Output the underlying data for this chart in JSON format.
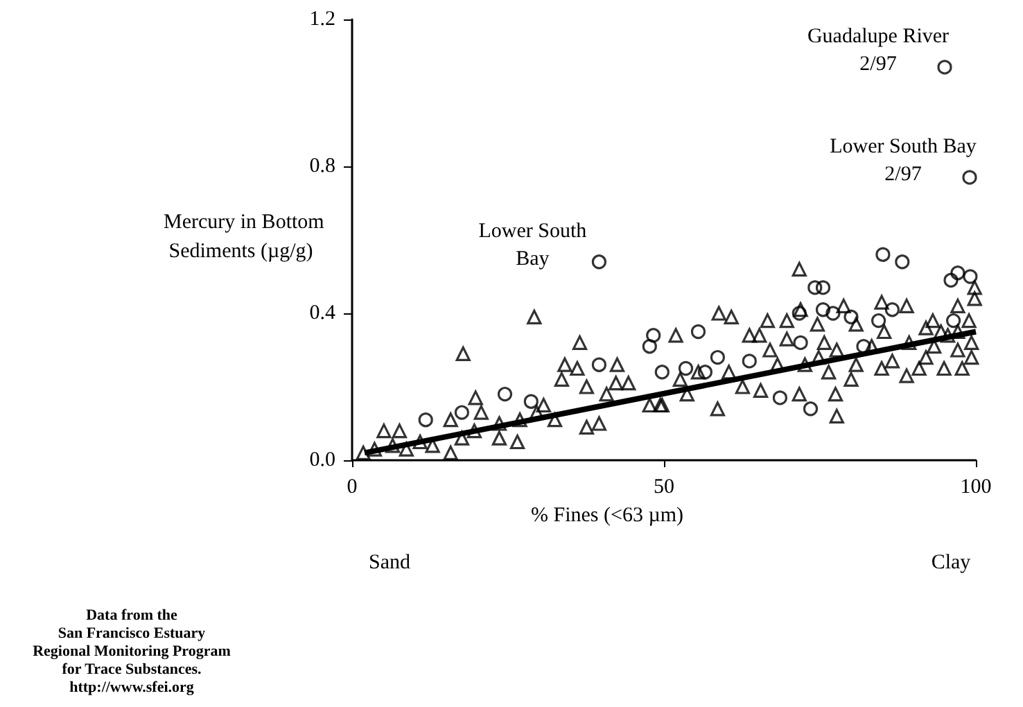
{
  "chart_data": {
    "type": "scatter",
    "xlabel": "% Fines (<63 µm)",
    "ylabel": "Mercury in Bottom Sediments (µg/g)",
    "xlim": [
      0,
      100
    ],
    "xticks": [
      0,
      50,
      100
    ],
    "ylim": [
      0,
      1.2
    ],
    "yticks": [
      {
        "value": 0,
        "label": "0.0"
      },
      {
        "value": 0.4,
        "label": "0.4"
      },
      {
        "value": 0.8,
        "label": "0.8"
      },
      {
        "value": 1.2,
        "label": "1.2"
      }
    ],
    "grid": false,
    "series": [
      {
        "marker": "circle",
        "color": "#000000",
        "x": [
          11.8,
          17.6,
          24.5,
          28.7,
          39.6,
          47.7,
          48.3,
          49.7,
          53.5,
          55.5,
          58.6,
          56.6,
          68.6,
          73.5,
          74.2,
          75.5,
          71.7,
          75.5,
          77.1,
          80,
          85.1,
          88.2,
          96,
          97.1,
          99.1,
          82,
          86.6,
          84.4,
          71.9,
          63.7,
          96.4,
          39.6,
          95,
          99
        ],
        "values": [
          0.11,
          0.13,
          0.18,
          0.16,
          0.26,
          0.31,
          0.34,
          0.24,
          0.25,
          0.35,
          0.28,
          0.24,
          0.17,
          0.14,
          0.47,
          0.47,
          0.4,
          0.41,
          0.4,
          0.39,
          0.56,
          0.54,
          0.49,
          0.51,
          0.5,
          0.31,
          0.41,
          0.38,
          0.32,
          0.27,
          0.38,
          0.54,
          1.07,
          0.77
        ]
      },
      {
        "marker": "triangle",
        "color": "#000000",
        "x": [
          1.8,
          3.6,
          5.1,
          7.6,
          6.5,
          8.7,
          10.9,
          12.9,
          15.8,
          15.8,
          17.8,
          17.6,
          19.8,
          20.7,
          19.6,
          23.6,
          23.6,
          26.5,
          26.9,
          29.2,
          29.6,
          30.7,
          32.5,
          33.6,
          34.1,
          36.1,
          36.5,
          37.6,
          37.6,
          39.6,
          40.8,
          42.5,
          42.3,
          44.3,
          47.7,
          49.4,
          49.7,
          51.9,
          52.6,
          53.7,
          55.5,
          58.6,
          58.8,
          60.8,
          60.4,
          62.6,
          63.7,
          65.3,
          65.5,
          66.6,
          67,
          68.2,
          69.7,
          69.7,
          71.7,
          71.7,
          71.9,
          72.6,
          74.6,
          74.8,
          75.7,
          76.4,
          77.5,
          77.7,
          77.7,
          78.8,
          80,
          80.8,
          80.8,
          83.3,
          84.9,
          84.9,
          85.3,
          86.6,
          88.9,
          88.9,
          89.3,
          90.9,
          92,
          92,
          93.1,
          93.3,
          94.9,
          95.5,
          97.1,
          97.1,
          97.8,
          98.9,
          99.3,
          99.8,
          99.8,
          99.3,
          97.1,
          94.4
        ],
        "values": [
          0.02,
          0.03,
          0.08,
          0.08,
          0.04,
          0.03,
          0.05,
          0.04,
          0.02,
          0.11,
          0.29,
          0.06,
          0.17,
          0.13,
          0.08,
          0.1,
          0.06,
          0.05,
          0.11,
          0.39,
          0.13,
          0.15,
          0.11,
          0.22,
          0.26,
          0.25,
          0.32,
          0.2,
          0.09,
          0.1,
          0.18,
          0.26,
          0.21,
          0.21,
          0.15,
          0.15,
          0.15,
          0.34,
          0.22,
          0.18,
          0.24,
          0.14,
          0.4,
          0.39,
          0.24,
          0.2,
          0.34,
          0.34,
          0.19,
          0.38,
          0.3,
          0.26,
          0.38,
          0.33,
          0.52,
          0.18,
          0.41,
          0.26,
          0.37,
          0.28,
          0.32,
          0.24,
          0.18,
          0.12,
          0.3,
          0.42,
          0.22,
          0.37,
          0.26,
          0.31,
          0.43,
          0.25,
          0.35,
          0.27,
          0.42,
          0.23,
          0.32,
          0.25,
          0.36,
          0.28,
          0.38,
          0.31,
          0.25,
          0.34,
          0.42,
          0.3,
          0.25,
          0.38,
          0.32,
          0.47,
          0.44,
          0.28,
          0.35,
          0.35
        ]
      },
      {
        "type": "line",
        "marker": "none",
        "line_style": "solid",
        "color": "#000000",
        "x": [
          2,
          100
        ],
        "values": [
          0.02,
          0.35
        ]
      }
    ],
    "annotations": [
      {
        "text": "Guadalupe River\n2/97",
        "x": 95,
        "y": 1.07
      },
      {
        "text": "Lower South Bay\n2/97",
        "x": 99,
        "y": 0.77
      },
      {
        "text": "Lower South\nBay",
        "x": 39.6,
        "y": 0.54
      },
      "Sand",
      "Clay",
      "Data from the\nSan Francisco Estuary\nRegional Monitoring Program\nfor Trace Substances.\nhttp://www.sfei.org"
    ]
  }
}
